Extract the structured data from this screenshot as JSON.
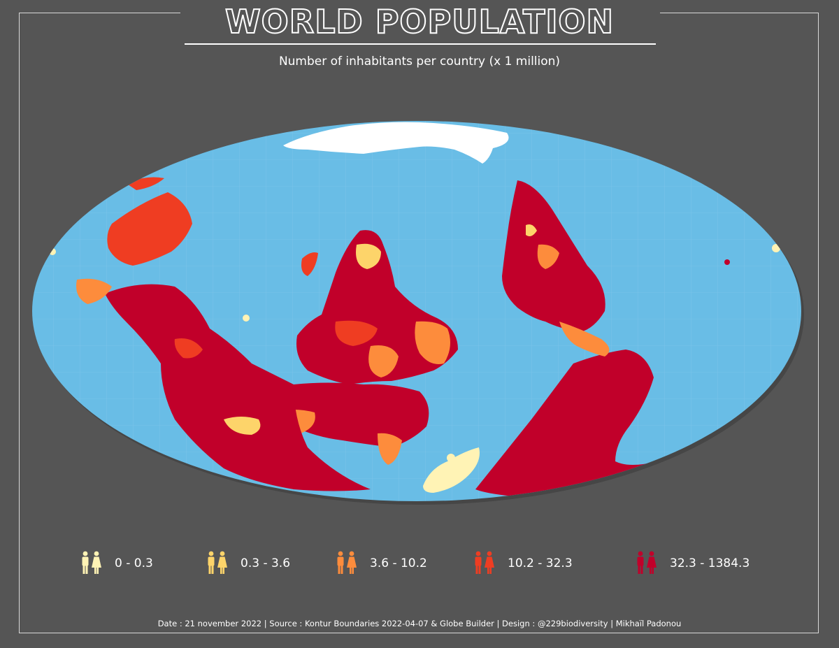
{
  "header": {
    "title": "WORLD POPULATION",
    "subtitle": "Number of inhabitants per country (x 1 million)"
  },
  "colors": {
    "background": "#555555",
    "ocean": "#69bde6",
    "ice": "#ffffff",
    "class_1": "#fff3b5",
    "class_2": "#fdd46a",
    "class_3": "#fd8c3c",
    "class_4": "#ef3d22",
    "class_5": "#c1002a"
  },
  "legend": {
    "items": [
      {
        "label": "0 - 0.3",
        "color": "#fff3b5",
        "icon": "man-woman-icon"
      },
      {
        "label": "0.3 - 3.6",
        "color": "#fdd46a",
        "icon": "man-woman-icon"
      },
      {
        "label": "3.6 - 10.2",
        "color": "#fd8c3c",
        "icon": "man-woman-icon"
      },
      {
        "label": "10.2 - 32.3",
        "color": "#ef3d22",
        "icon": "man-woman-icon"
      },
      {
        "label": "32.3 - 1384.3",
        "color": "#c1002a",
        "icon": "man-woman-icon"
      }
    ]
  },
  "footer": {
    "credits": "Date : 21 november 2022 | Source : Kontur Boundaries 2022-04-07 &  Globe Builder  | Design : @229biodiversity | Mikhaïl Padonou"
  }
}
